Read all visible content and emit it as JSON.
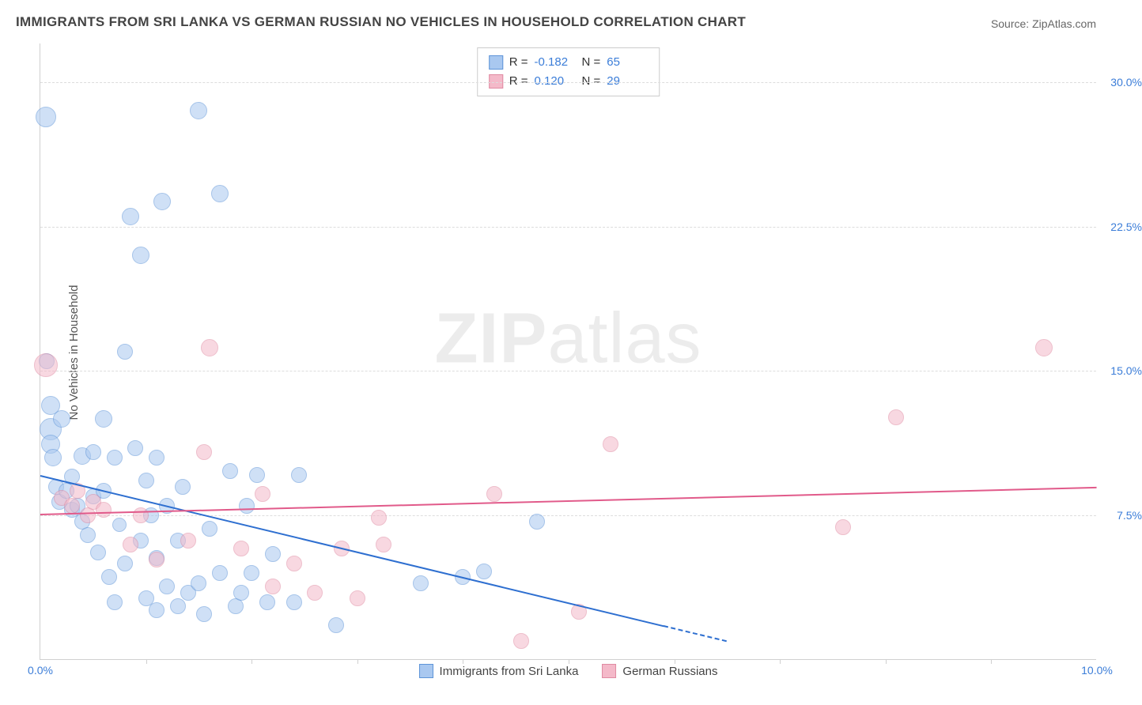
{
  "title": "IMMIGRANTS FROM SRI LANKA VS GERMAN RUSSIAN NO VEHICLES IN HOUSEHOLD CORRELATION CHART",
  "source": "Source: ZipAtlas.com",
  "watermark_bold": "ZIP",
  "watermark_light": "atlas",
  "chart": {
    "type": "scatter",
    "ylabel": "No Vehicles in Household",
    "xlim": [
      0,
      10
    ],
    "ylim": [
      0,
      32
    ],
    "xtick_labels": [
      "0.0%",
      "10.0%"
    ],
    "xtick_positions": [
      0,
      10
    ],
    "xtick_minor": [
      1,
      2,
      3,
      4,
      5,
      6,
      7,
      8,
      9
    ],
    "ytick_labels": [
      "7.5%",
      "15.0%",
      "22.5%",
      "30.0%"
    ],
    "ytick_positions": [
      7.5,
      15.0,
      22.5,
      30.0
    ],
    "grid_color": "#dddddd",
    "background_color": "#ffffff",
    "axis_color": "#d0d0d0",
    "tick_label_color": "#3b7dd8",
    "label_fontsize": 15,
    "tick_fontsize": 14,
    "title_fontsize": 17
  },
  "series": [
    {
      "name": "Immigrants from Sri Lanka",
      "fill_color": "#a9c8f0",
      "stroke_color": "#5e94d8",
      "fill_opacity": 0.55,
      "marker_radius": 11,
      "R": "-0.182",
      "N": "65",
      "trend": {
        "x1": 0,
        "y1": 9.6,
        "x2": 6.5,
        "y2": 1.0,
        "dash_from_x": 5.9,
        "color": "#2e6fd0",
        "width": 2
      },
      "points": [
        {
          "x": 0.05,
          "y": 28.2,
          "r": 13
        },
        {
          "x": 0.1,
          "y": 12.0,
          "r": 14
        },
        {
          "x": 0.1,
          "y": 11.2,
          "r": 12
        },
        {
          "x": 0.06,
          "y": 15.5,
          "r": 10
        },
        {
          "x": 0.1,
          "y": 13.2,
          "r": 12
        },
        {
          "x": 0.12,
          "y": 10.5,
          "r": 11
        },
        {
          "x": 0.15,
          "y": 9.0,
          "r": 10
        },
        {
          "x": 0.18,
          "y": 8.2,
          "r": 10
        },
        {
          "x": 0.2,
          "y": 12.5,
          "r": 11
        },
        {
          "x": 0.25,
          "y": 8.8,
          "r": 10
        },
        {
          "x": 0.3,
          "y": 7.8,
          "r": 10
        },
        {
          "x": 0.3,
          "y": 9.5,
          "r": 10
        },
        {
          "x": 0.35,
          "y": 8.0,
          "r": 10
        },
        {
          "x": 0.4,
          "y": 7.2,
          "r": 10
        },
        {
          "x": 0.4,
          "y": 10.6,
          "r": 11
        },
        {
          "x": 0.45,
          "y": 6.5,
          "r": 10
        },
        {
          "x": 0.5,
          "y": 8.5,
          "r": 10
        },
        {
          "x": 0.5,
          "y": 10.8,
          "r": 10
        },
        {
          "x": 0.55,
          "y": 5.6,
          "r": 10
        },
        {
          "x": 0.6,
          "y": 8.8,
          "r": 10
        },
        {
          "x": 0.6,
          "y": 12.5,
          "r": 11
        },
        {
          "x": 0.65,
          "y": 4.3,
          "r": 10
        },
        {
          "x": 0.7,
          "y": 3.0,
          "r": 10
        },
        {
          "x": 0.7,
          "y": 10.5,
          "r": 10
        },
        {
          "x": 0.75,
          "y": 7.0,
          "r": 9
        },
        {
          "x": 0.8,
          "y": 5.0,
          "r": 10
        },
        {
          "x": 0.8,
          "y": 16.0,
          "r": 10
        },
        {
          "x": 0.85,
          "y": 23.0,
          "r": 11
        },
        {
          "x": 0.9,
          "y": 11.0,
          "r": 10
        },
        {
          "x": 0.95,
          "y": 6.2,
          "r": 10
        },
        {
          "x": 0.95,
          "y": 21.0,
          "r": 11
        },
        {
          "x": 1.0,
          "y": 9.3,
          "r": 10
        },
        {
          "x": 1.0,
          "y": 3.2,
          "r": 10
        },
        {
          "x": 1.05,
          "y": 7.5,
          "r": 10
        },
        {
          "x": 1.1,
          "y": 10.5,
          "r": 10
        },
        {
          "x": 1.1,
          "y": 5.3,
          "r": 10
        },
        {
          "x": 1.1,
          "y": 2.6,
          "r": 10
        },
        {
          "x": 1.15,
          "y": 23.8,
          "r": 11
        },
        {
          "x": 1.2,
          "y": 8.0,
          "r": 10
        },
        {
          "x": 1.2,
          "y": 3.8,
          "r": 10
        },
        {
          "x": 1.3,
          "y": 6.2,
          "r": 10
        },
        {
          "x": 1.3,
          "y": 2.8,
          "r": 10
        },
        {
          "x": 1.35,
          "y": 9.0,
          "r": 10
        },
        {
          "x": 1.4,
          "y": 3.5,
          "r": 10
        },
        {
          "x": 1.5,
          "y": 4.0,
          "r": 10
        },
        {
          "x": 1.5,
          "y": 28.5,
          "r": 11
        },
        {
          "x": 1.55,
          "y": 2.4,
          "r": 10
        },
        {
          "x": 1.6,
          "y": 6.8,
          "r": 10
        },
        {
          "x": 1.7,
          "y": 24.2,
          "r": 11
        },
        {
          "x": 1.7,
          "y": 4.5,
          "r": 10
        },
        {
          "x": 1.8,
          "y": 9.8,
          "r": 10
        },
        {
          "x": 1.85,
          "y": 2.8,
          "r": 10
        },
        {
          "x": 1.9,
          "y": 3.5,
          "r": 10
        },
        {
          "x": 1.95,
          "y": 8.0,
          "r": 10
        },
        {
          "x": 2.0,
          "y": 4.5,
          "r": 10
        },
        {
          "x": 2.05,
          "y": 9.6,
          "r": 10
        },
        {
          "x": 2.15,
          "y": 3.0,
          "r": 10
        },
        {
          "x": 2.2,
          "y": 5.5,
          "r": 10
        },
        {
          "x": 2.4,
          "y": 3.0,
          "r": 10
        },
        {
          "x": 2.45,
          "y": 9.6,
          "r": 10
        },
        {
          "x": 2.8,
          "y": 1.8,
          "r": 10
        },
        {
          "x": 3.6,
          "y": 4.0,
          "r": 10
        },
        {
          "x": 4.0,
          "y": 4.3,
          "r": 10
        },
        {
          "x": 4.7,
          "y": 7.2,
          "r": 10
        },
        {
          "x": 4.2,
          "y": 4.6,
          "r": 10
        }
      ]
    },
    {
      "name": "German Russians",
      "fill_color": "#f4b9c9",
      "stroke_color": "#e08aa2",
      "fill_opacity": 0.55,
      "marker_radius": 11,
      "R": "0.120",
      "N": "29",
      "trend": {
        "x1": 0,
        "y1": 7.6,
        "x2": 10,
        "y2": 9.0,
        "color": "#e15a8a",
        "width": 2
      },
      "points": [
        {
          "x": 0.05,
          "y": 15.3,
          "r": 15
        },
        {
          "x": 0.2,
          "y": 8.4,
          "r": 10
        },
        {
          "x": 0.3,
          "y": 8.0,
          "r": 10
        },
        {
          "x": 0.35,
          "y": 8.8,
          "r": 10
        },
        {
          "x": 0.45,
          "y": 7.5,
          "r": 10
        },
        {
          "x": 0.5,
          "y": 8.2,
          "r": 10
        },
        {
          "x": 0.6,
          "y": 7.8,
          "r": 10
        },
        {
          "x": 0.85,
          "y": 6.0,
          "r": 10
        },
        {
          "x": 0.95,
          "y": 7.5,
          "r": 10
        },
        {
          "x": 1.1,
          "y": 5.2,
          "r": 10
        },
        {
          "x": 1.4,
          "y": 6.2,
          "r": 10
        },
        {
          "x": 1.55,
          "y": 10.8,
          "r": 10
        },
        {
          "x": 1.6,
          "y": 16.2,
          "r": 11
        },
        {
          "x": 1.9,
          "y": 5.8,
          "r": 10
        },
        {
          "x": 2.1,
          "y": 8.6,
          "r": 10
        },
        {
          "x": 2.2,
          "y": 3.8,
          "r": 10
        },
        {
          "x": 2.4,
          "y": 5.0,
          "r": 10
        },
        {
          "x": 2.6,
          "y": 3.5,
          "r": 10
        },
        {
          "x": 2.85,
          "y": 5.8,
          "r": 10
        },
        {
          "x": 3.0,
          "y": 3.2,
          "r": 10
        },
        {
          "x": 3.2,
          "y": 7.4,
          "r": 10
        },
        {
          "x": 3.25,
          "y": 6.0,
          "r": 10
        },
        {
          "x": 4.3,
          "y": 8.6,
          "r": 10
        },
        {
          "x": 4.55,
          "y": 1.0,
          "r": 10
        },
        {
          "x": 5.1,
          "y": 2.5,
          "r": 10
        },
        {
          "x": 5.4,
          "y": 11.2,
          "r": 10
        },
        {
          "x": 7.6,
          "y": 6.9,
          "r": 10
        },
        {
          "x": 8.1,
          "y": 12.6,
          "r": 10
        },
        {
          "x": 9.5,
          "y": 16.2,
          "r": 11
        }
      ]
    }
  ],
  "stats_box": {
    "rows": [
      {
        "swatch_fill": "#a9c8f0",
        "swatch_border": "#5e94d8",
        "R_label": "R =",
        "R": "-0.182",
        "N_label": "N =",
        "N": "65"
      },
      {
        "swatch_fill": "#f4b9c9",
        "swatch_border": "#e08aa2",
        "R_label": "R =",
        "R": "0.120",
        "N_label": "N =",
        "N": "29"
      }
    ]
  },
  "bottom_legend": [
    {
      "swatch_fill": "#a9c8f0",
      "swatch_border": "#5e94d8",
      "label": "Immigrants from Sri Lanka"
    },
    {
      "swatch_fill": "#f4b9c9",
      "swatch_border": "#e08aa2",
      "label": "German Russians"
    }
  ]
}
